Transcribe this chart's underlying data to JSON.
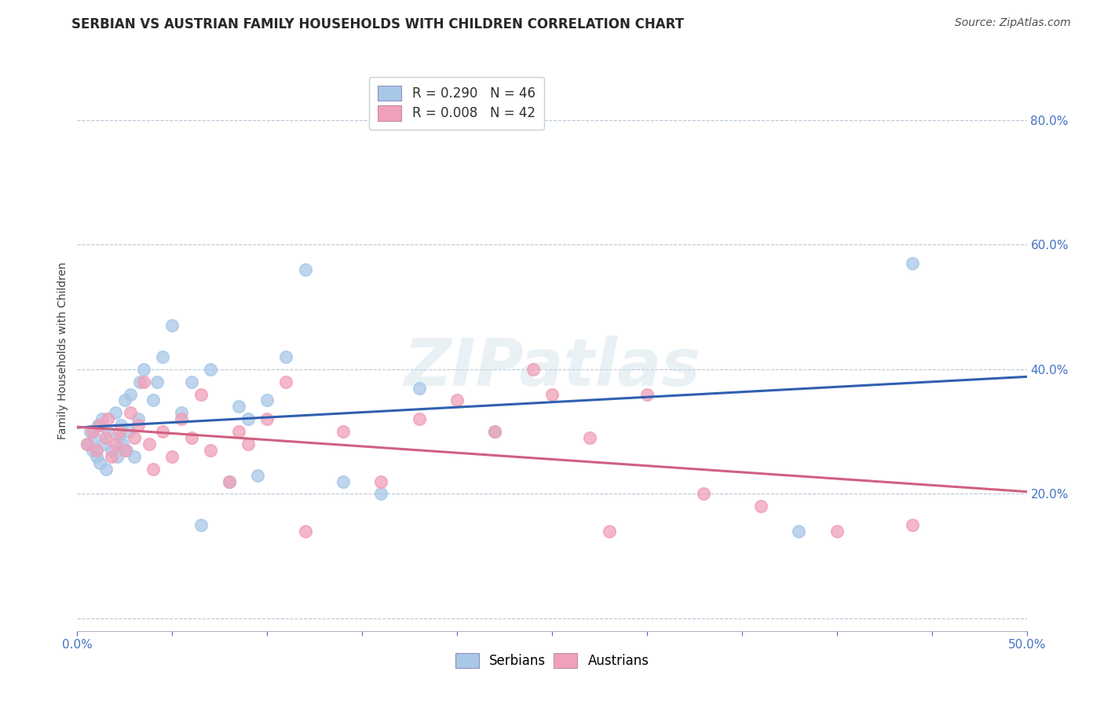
{
  "title": "SERBIAN VS AUSTRIAN FAMILY HOUSEHOLDS WITH CHILDREN CORRELATION CHART",
  "source": "Source: ZipAtlas.com",
  "ylabel": "Family Households with Children",
  "xlim": [
    0.0,
    0.5
  ],
  "ylim": [
    -0.02,
    0.88
  ],
  "yticks": [
    0.0,
    0.2,
    0.4,
    0.6,
    0.8
  ],
  "serbian_R": "0.290",
  "serbian_N": "46",
  "austrian_R": "0.008",
  "austrian_N": "42",
  "serbian_color": "#a8c8e8",
  "austrian_color": "#f0a0b8",
  "serbian_line_color": "#3060b0",
  "austrian_line_color": "#d06080",
  "legend_serbian_label": "Serbians",
  "legend_austrian_label": "Austrians",
  "serbian_x": [
    0.005,
    0.007,
    0.008,
    0.009,
    0.01,
    0.011,
    0.012,
    0.013,
    0.014,
    0.015,
    0.016,
    0.018,
    0.02,
    0.021,
    0.022,
    0.023,
    0.024,
    0.025,
    0.026,
    0.027,
    0.028,
    0.03,
    0.032,
    0.033,
    0.035,
    0.04,
    0.042,
    0.045,
    0.05,
    0.055,
    0.06,
    0.065,
    0.07,
    0.08,
    0.085,
    0.09,
    0.095,
    0.1,
    0.11,
    0.12,
    0.14,
    0.16,
    0.18,
    0.22,
    0.38,
    0.44
  ],
  "serbian_y": [
    0.28,
    0.3,
    0.27,
    0.29,
    0.26,
    0.31,
    0.25,
    0.32,
    0.28,
    0.24,
    0.3,
    0.27,
    0.33,
    0.26,
    0.29,
    0.31,
    0.28,
    0.35,
    0.27,
    0.3,
    0.36,
    0.26,
    0.32,
    0.38,
    0.4,
    0.35,
    0.38,
    0.42,
    0.47,
    0.33,
    0.38,
    0.15,
    0.4,
    0.22,
    0.34,
    0.32,
    0.23,
    0.35,
    0.42,
    0.56,
    0.22,
    0.2,
    0.37,
    0.3,
    0.14,
    0.57
  ],
  "austrian_x": [
    0.005,
    0.008,
    0.01,
    0.012,
    0.015,
    0.016,
    0.018,
    0.02,
    0.022,
    0.025,
    0.028,
    0.03,
    0.032,
    0.035,
    0.038,
    0.04,
    0.045,
    0.05,
    0.055,
    0.06,
    0.065,
    0.07,
    0.08,
    0.085,
    0.09,
    0.1,
    0.11,
    0.12,
    0.14,
    0.16,
    0.18,
    0.2,
    0.22,
    0.24,
    0.25,
    0.27,
    0.28,
    0.3,
    0.33,
    0.36,
    0.4,
    0.44
  ],
  "austrian_y": [
    0.28,
    0.3,
    0.27,
    0.31,
    0.29,
    0.32,
    0.26,
    0.28,
    0.3,
    0.27,
    0.33,
    0.29,
    0.31,
    0.38,
    0.28,
    0.24,
    0.3,
    0.26,
    0.32,
    0.29,
    0.36,
    0.27,
    0.22,
    0.3,
    0.28,
    0.32,
    0.38,
    0.14,
    0.3,
    0.22,
    0.32,
    0.35,
    0.3,
    0.4,
    0.36,
    0.29,
    0.14,
    0.36,
    0.2,
    0.18,
    0.14,
    0.15
  ],
  "background_color": "#ffffff",
  "grid_color": "#b8c8d8",
  "title_fontsize": 12,
  "axis_label_fontsize": 10,
  "tick_fontsize": 11,
  "legend_fontsize": 12,
  "source_fontsize": 10
}
